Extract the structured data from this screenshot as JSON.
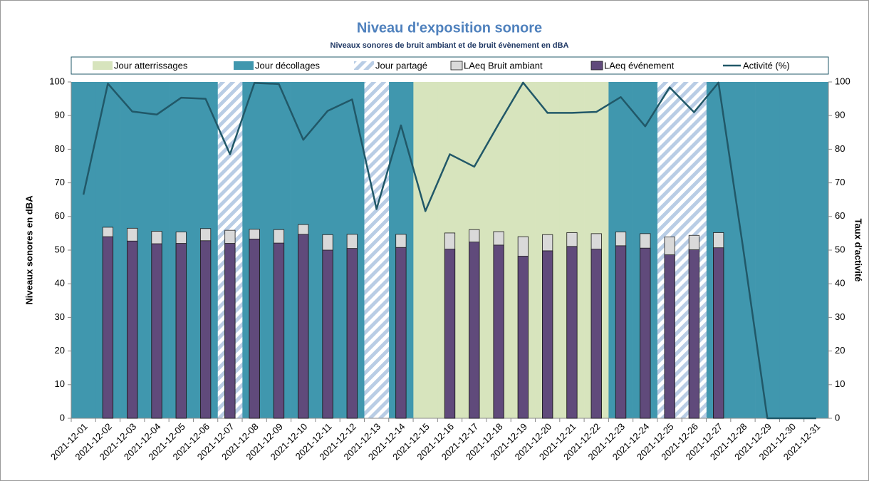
{
  "chart_data": {
    "type": "bar",
    "title": "Niveau d'exposition sonore",
    "subtitle": "Niveaux sonores de bruit ambiant et de bruit évènement en dBA",
    "y_label": "Niveaux sonores en dBA",
    "y2_label": "Taux d'activité",
    "categories": [
      "2021-12-01",
      "2021-12-02",
      "2021-12-03",
      "2021-12-04",
      "2021-12-05",
      "2021-12-06",
      "2021-12-07",
      "2021-12-08",
      "2021-12-09",
      "2021-12-10",
      "2021-12-11",
      "2021-12-12",
      "2021-12-13",
      "2021-12-14",
      "2021-12-15",
      "2021-12-16",
      "2021-12-17",
      "2021-12-18",
      "2021-12-19",
      "2021-12-20",
      "2021-12-21",
      "2021-12-22",
      "2021-12-23",
      "2021-12-24",
      "2021-12-25",
      "2021-12-26",
      "2021-12-27",
      "2021-12-28",
      "2021-12-29",
      "2021-12-30",
      "2021-12-31"
    ],
    "series": [
      {
        "name": "Jour atterrissages",
        "type": "band",
        "color": "#d7e4bd",
        "values": [
          null,
          null,
          null,
          null,
          null,
          null,
          null,
          null,
          null,
          null,
          null,
          null,
          null,
          null,
          100,
          100,
          100,
          100,
          100,
          100,
          100,
          100,
          null,
          null,
          null,
          null,
          null,
          null,
          null,
          null,
          null
        ]
      },
      {
        "name": "Jour décollages",
        "type": "band",
        "color": "#4097ae",
        "values": [
          100,
          100,
          100,
          100,
          100,
          100,
          null,
          100,
          100,
          100,
          100,
          100,
          null,
          100,
          null,
          null,
          null,
          null,
          null,
          null,
          null,
          null,
          100,
          100,
          null,
          null,
          100,
          100,
          100,
          100,
          100
        ]
      },
      {
        "name": "Jour partagé",
        "type": "band",
        "color": "#b9cde5",
        "hatch": true,
        "values": [
          null,
          null,
          null,
          null,
          null,
          null,
          100,
          null,
          null,
          null,
          null,
          null,
          100,
          null,
          null,
          null,
          null,
          null,
          null,
          null,
          null,
          null,
          null,
          null,
          100,
          100,
          null,
          null,
          null,
          null,
          null
        ]
      },
      {
        "name": "LAeq Bruit ambiant",
        "type": "bar",
        "color": "#d9d9d9",
        "values": [
          null,
          56.8,
          56.5,
          55.6,
          55.4,
          56.4,
          55.9,
          56.2,
          56.1,
          57.6,
          54.6,
          54.7,
          null,
          54.7,
          null,
          55.1,
          56.1,
          55.5,
          54.0,
          54.6,
          55.2,
          54.9,
          55.4,
          54.9,
          53.9,
          54.4,
          55.2,
          null,
          null,
          null,
          null
        ]
      },
      {
        "name": "LAeq événement",
        "type": "bar",
        "color": "#604a7b",
        "values": [
          null,
          54.0,
          52.7,
          51.9,
          52.0,
          52.8,
          52.0,
          53.3,
          52.1,
          54.7,
          50.0,
          50.5,
          null,
          50.8,
          null,
          50.3,
          52.4,
          51.5,
          48.2,
          49.8,
          51.1,
          50.3,
          51.3,
          50.6,
          48.6,
          50.1,
          50.7,
          null,
          null,
          null,
          null
        ]
      },
      {
        "name": "Activité (%)",
        "type": "line",
        "axis": "y2",
        "color": "#215868",
        "values": [
          66.5,
          99.5,
          91.2,
          90.3,
          95.3,
          95.0,
          78.5,
          99.7,
          99.4,
          82.8,
          91.4,
          94.8,
          62.2,
          87.1,
          61.6,
          78.5,
          74.8,
          87.5,
          99.8,
          90.8,
          90.8,
          91.1,
          95.5,
          86.8,
          98.4,
          91.0,
          99.8,
          51,
          0,
          0,
          0
        ]
      }
    ],
    "ylim": [
      0,
      100
    ],
    "yticks": [
      0,
      10,
      20,
      30,
      40,
      50,
      60,
      70,
      80,
      90,
      100
    ],
    "y2lim": [
      0,
      100
    ],
    "y2ticks": [
      0,
      10,
      20,
      30,
      40,
      50,
      60,
      70,
      80,
      90,
      100
    ],
    "legend": "top"
  }
}
